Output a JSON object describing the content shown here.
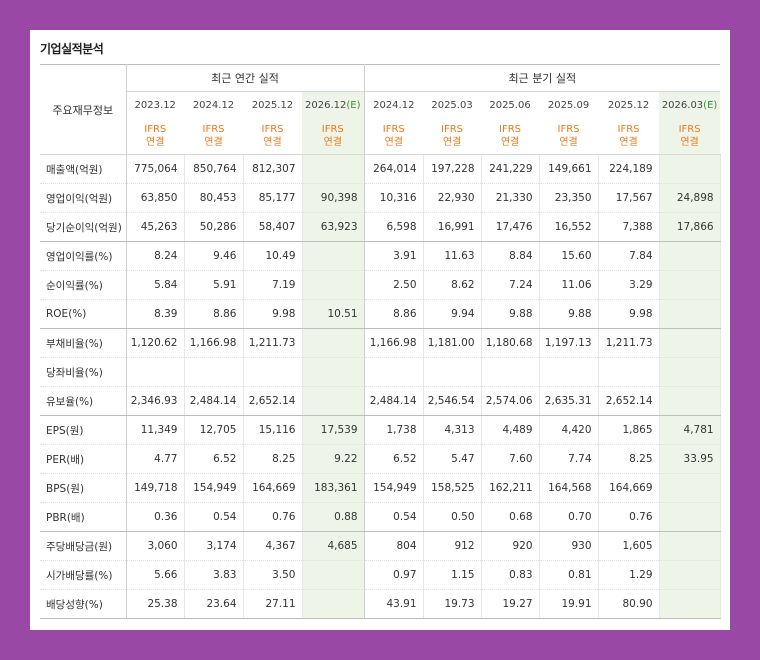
{
  "title": "기업실적분석",
  "header": {
    "label": "주요재무정보",
    "annual_group": "최근 연간 실적",
    "quarter_group": "최근 분기 실적",
    "ifrs_line1": "IFRS",
    "ifrs_line2": "연결",
    "annual_dates": [
      "2023.12",
      "2024.12",
      "2025.12",
      "2026.12"
    ],
    "quarter_dates": [
      "2024.12",
      "2025.03",
      "2025.06",
      "2025.09",
      "2025.12",
      "2026.03"
    ],
    "estimate_tag": "(E)"
  },
  "rows": [
    {
      "label": "매출액(억원)",
      "annual": [
        "775,064",
        "850,764",
        "812,307",
        ""
      ],
      "quarter": [
        "264,014",
        "197,228",
        "241,229",
        "149,661",
        "224,189",
        ""
      ]
    },
    {
      "label": "영업이익(억원)",
      "annual": [
        "63,850",
        "80,453",
        "85,177",
        "90,398"
      ],
      "quarter": [
        "10,316",
        "22,930",
        "21,330",
        "23,350",
        "17,567",
        "24,898"
      ]
    },
    {
      "label": "당기순이익(억원)",
      "annual": [
        "45,263",
        "50,286",
        "58,407",
        "63,923"
      ],
      "quarter": [
        "6,598",
        "16,991",
        "17,476",
        "16,552",
        "7,388",
        "17,866"
      ]
    },
    {
      "label": "영업이익률(%)",
      "annual": [
        "8.24",
        "9.46",
        "10.49",
        ""
      ],
      "quarter": [
        "3.91",
        "11.63",
        "8.84",
        "15.60",
        "7.84",
        ""
      ]
    },
    {
      "label": "순이익률(%)",
      "annual": [
        "5.84",
        "5.91",
        "7.19",
        ""
      ],
      "quarter": [
        "2.50",
        "8.62",
        "7.24",
        "11.06",
        "3.29",
        ""
      ]
    },
    {
      "label": "ROE(%)",
      "annual": [
        "8.39",
        "8.86",
        "9.98",
        "10.51"
      ],
      "quarter": [
        "8.86",
        "9.94",
        "9.88",
        "9.88",
        "9.98",
        ""
      ]
    },
    {
      "label": "부채비율(%)",
      "annual": [
        "1,120.62",
        "1,166.98",
        "1,211.73",
        ""
      ],
      "quarter": [
        "1,166.98",
        "1,181.00",
        "1,180.68",
        "1,197.13",
        "1,211.73",
        ""
      ]
    },
    {
      "label": "당좌비율(%)",
      "annual": [
        "",
        "",
        "",
        ""
      ],
      "quarter": [
        "",
        "",
        "",
        "",
        "",
        ""
      ]
    },
    {
      "label": "유보율(%)",
      "annual": [
        "2,346.93",
        "2,484.14",
        "2,652.14",
        ""
      ],
      "quarter": [
        "2,484.14",
        "2,546.54",
        "2,574.06",
        "2,635.31",
        "2,652.14",
        ""
      ]
    },
    {
      "label": "EPS(원)",
      "annual": [
        "11,349",
        "12,705",
        "15,116",
        "17,539"
      ],
      "quarter": [
        "1,738",
        "4,313",
        "4,489",
        "4,420",
        "1,865",
        "4,781"
      ]
    },
    {
      "label": "PER(배)",
      "annual": [
        "4.77",
        "6.52",
        "8.25",
        "9.22"
      ],
      "quarter": [
        "6.52",
        "5.47",
        "7.60",
        "7.74",
        "8.25",
        "33.95"
      ]
    },
    {
      "label": "BPS(원)",
      "annual": [
        "149,718",
        "154,949",
        "164,669",
        "183,361"
      ],
      "quarter": [
        "154,949",
        "158,525",
        "162,211",
        "164,568",
        "164,669",
        ""
      ]
    },
    {
      "label": "PBR(배)",
      "annual": [
        "0.36",
        "0.54",
        "0.76",
        "0.88"
      ],
      "quarter": [
        "0.54",
        "0.50",
        "0.68",
        "0.70",
        "0.76",
        ""
      ]
    },
    {
      "label": "주당배당금(원)",
      "annual": [
        "3,060",
        "3,174",
        "4,367",
        "4,685"
      ],
      "quarter": [
        "804",
        "912",
        "920",
        "930",
        "1,605",
        ""
      ]
    },
    {
      "label": "시가배당률(%)",
      "annual": [
        "5.66",
        "3.83",
        "3.50",
        ""
      ],
      "quarter": [
        "0.97",
        "1.15",
        "0.83",
        "0.81",
        "1.29",
        ""
      ]
    },
    {
      "label": "배당성향(%)",
      "annual": [
        "25.38",
        "23.64",
        "27.11",
        ""
      ],
      "quarter": [
        "43.91",
        "19.73",
        "19.27",
        "19.91",
        "80.90",
        ""
      ]
    }
  ]
}
